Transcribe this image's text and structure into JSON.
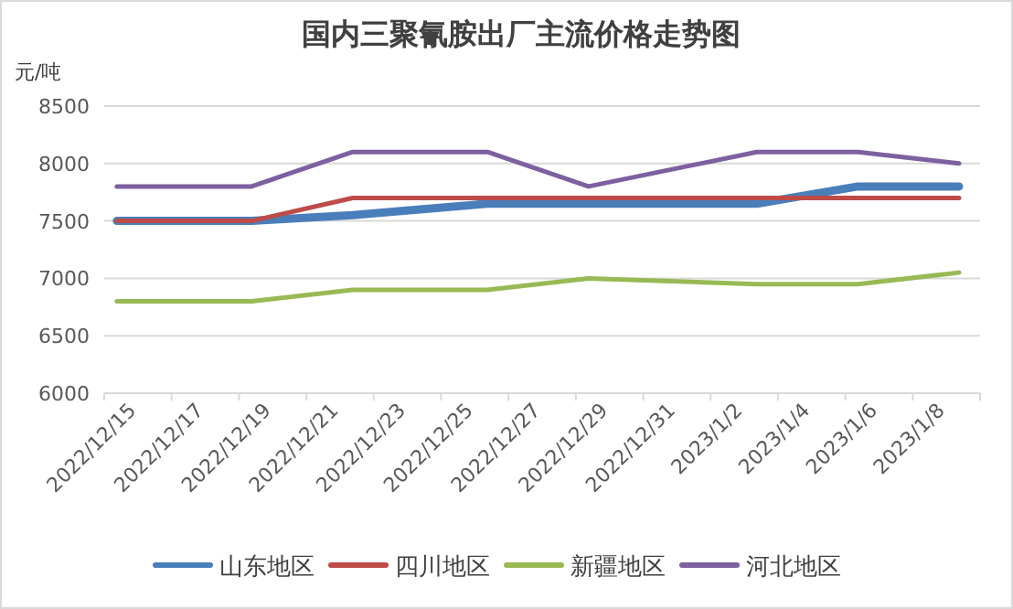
{
  "chart_data": {
    "type": "line",
    "title": "国内三聚氰胺出厂主流价格走势图",
    "ylabel": "元/吨",
    "x": [
      "2022-12-15",
      "2022-12-19",
      "2022-12-22",
      "2022-12-26",
      "2022-12-29",
      "2023-01-03",
      "2023-01-06",
      "2023-01-09"
    ],
    "series": [
      {
        "name": "山东地区",
        "color": "#4a7ebb",
        "values": [
          7500,
          7500,
          7550,
          7650,
          7650,
          7650,
          7800,
          7800
        ]
      },
      {
        "name": "四川地区",
        "color": "#be4b48",
        "values": [
          7500,
          7500,
          7700,
          7700,
          7700,
          7700,
          7700,
          7700
        ]
      },
      {
        "name": "新疆地区",
        "color": "#98b954",
        "values": [
          6800,
          6800,
          6900,
          6900,
          7000,
          6950,
          6950,
          7050
        ]
      },
      {
        "name": "河北地区",
        "color": "#7d60a0",
        "values": [
          7800,
          7800,
          8100,
          8100,
          7800,
          8100,
          8100,
          8000
        ]
      }
    ],
    "xlim": [
      "2022-12-14T15:00",
      "2023-01-09T15:00"
    ],
    "xticks": [
      {
        "value": "2022-12-14T15:00",
        "label": "2022/12/15"
      },
      {
        "value": "2022-12-16T15:00",
        "label": "2022/12/17"
      },
      {
        "value": "2022-12-18T15:00",
        "label": "2022/12/19"
      },
      {
        "value": "2022-12-20T15:00",
        "label": "2022/12/21"
      },
      {
        "value": "2022-12-22T15:00",
        "label": "2022/12/23"
      },
      {
        "value": "2022-12-24T15:00",
        "label": "2022/12/25"
      },
      {
        "value": "2022-12-26T15:00",
        "label": "2022/12/27"
      },
      {
        "value": "2022-12-28T15:00",
        "label": "2022/12/29"
      },
      {
        "value": "2022-12-30T15:00",
        "label": "2022/12/31"
      },
      {
        "value": "2023-01-01T15:00",
        "label": "2023/1/2"
      },
      {
        "value": "2023-01-03T15:00",
        "label": "2023/1/4"
      },
      {
        "value": "2023-01-05T15:00",
        "label": "2023/1/6"
      },
      {
        "value": "2023-01-07T15:00",
        "label": "2023/1/8"
      }
    ],
    "ylim": [
      6000,
      8500
    ],
    "yticks": [
      6000,
      6500,
      7000,
      7500,
      8000,
      8500
    ],
    "grid": "y",
    "legend": "bottom"
  }
}
